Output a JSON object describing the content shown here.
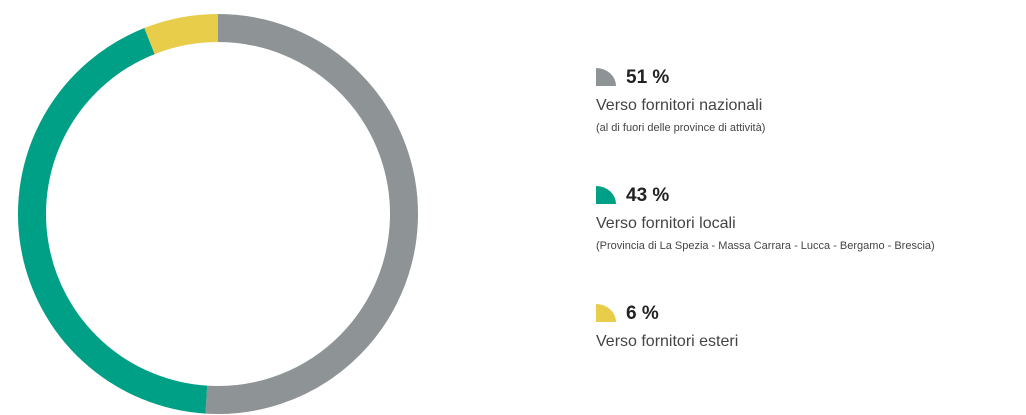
{
  "chart_data": {
    "type": "pie",
    "categories": [
      "Verso fornitori nazionali",
      "Verso fornitori locali",
      "Verso fornitori esteri"
    ],
    "notes": [
      "(al di fuori delle province di attività)",
      "(Provincia di La Spezia - Massa Carrara - Lucca - Bergamo - Brescia)",
      null
    ],
    "values": [
      51,
      43,
      6
    ],
    "value_labels": [
      "51 %",
      "43 %",
      "6 %"
    ],
    "colors": [
      "#8e9396",
      "#00a086",
      "#e8cd4a"
    ],
    "donut": true
  }
}
